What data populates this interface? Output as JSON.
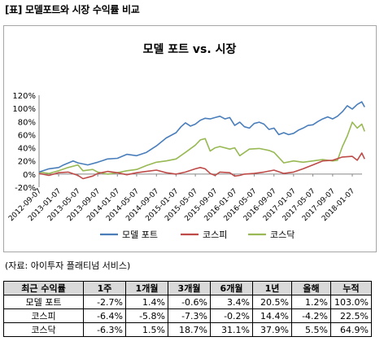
{
  "header": "[표] 모델포트와 시장 수익률 비교",
  "source": "(자료: 아이투자 플래티넘 서비스)",
  "chart_data": {
    "type": "line",
    "title": "모델 포트 vs. 시장",
    "xlabel": "",
    "ylabel": "",
    "ylim": [
      -20,
      120
    ],
    "yticks": [
      "-20%",
      "0%",
      "20%",
      "40%",
      "60%",
      "80%",
      "100%",
      "120%"
    ],
    "x_ticks": [
      "2012-09-07",
      "2013-01-07",
      "2013-05-07",
      "2013-09-07",
      "2014-01-07",
      "2014-05-07",
      "2014-09-07",
      "2015-01-07",
      "2015-05-07",
      "2015-09-07",
      "2016-01-07",
      "2016-05-07",
      "2016-09-07",
      "2017-01-07",
      "2017-05-07",
      "2017-09-07",
      "2018-01-07"
    ],
    "legend_position": "bottom",
    "grid": false,
    "series": [
      {
        "name": "모델 포트",
        "color": "#4a7ebb",
        "points": [
          [
            "2012-09-07",
            3
          ],
          [
            "2012-11-07",
            8
          ],
          [
            "2013-01-07",
            10
          ],
          [
            "2013-02-07",
            14
          ],
          [
            "2013-04-07",
            20
          ],
          [
            "2013-05-07",
            17
          ],
          [
            "2013-07-07",
            14
          ],
          [
            "2013-09-07",
            18
          ],
          [
            "2013-11-07",
            23
          ],
          [
            "2014-01-07",
            24
          ],
          [
            "2014-03-07",
            30
          ],
          [
            "2014-05-07",
            28
          ],
          [
            "2014-07-07",
            33
          ],
          [
            "2014-09-07",
            43
          ],
          [
            "2014-11-07",
            55
          ],
          [
            "2015-01-07",
            63
          ],
          [
            "2015-02-07",
            72
          ],
          [
            "2015-03-07",
            78
          ],
          [
            "2015-04-07",
            73
          ],
          [
            "2015-05-07",
            76
          ],
          [
            "2015-06-07",
            82
          ],
          [
            "2015-07-07",
            85
          ],
          [
            "2015-08-07",
            84
          ],
          [
            "2015-09-07",
            86
          ],
          [
            "2015-10-07",
            88
          ],
          [
            "2015-11-07",
            84
          ],
          [
            "2015-12-07",
            86
          ],
          [
            "2016-01-07",
            74
          ],
          [
            "2016-02-07",
            79
          ],
          [
            "2016-03-07",
            72
          ],
          [
            "2016-04-07",
            70
          ],
          [
            "2016-05-07",
            77
          ],
          [
            "2016-06-07",
            79
          ],
          [
            "2016-07-07",
            76
          ],
          [
            "2016-08-07",
            68
          ],
          [
            "2016-09-07",
            70
          ],
          [
            "2016-10-07",
            60
          ],
          [
            "2016-11-07",
            63
          ],
          [
            "2016-12-07",
            60
          ],
          [
            "2017-01-07",
            62
          ],
          [
            "2017-02-07",
            67
          ],
          [
            "2017-03-07",
            70
          ],
          [
            "2017-04-07",
            74
          ],
          [
            "2017-05-07",
            75
          ],
          [
            "2017-06-07",
            80
          ],
          [
            "2017-07-07",
            84
          ],
          [
            "2017-08-07",
            87
          ],
          [
            "2017-09-07",
            84
          ],
          [
            "2017-10-07",
            88
          ],
          [
            "2017-11-07",
            95
          ],
          [
            "2017-12-07",
            104
          ],
          [
            "2018-01-07",
            99
          ],
          [
            "2018-02-07",
            106
          ],
          [
            "2018-03-07",
            110
          ],
          [
            "2018-03-25",
            102
          ]
        ]
      },
      {
        "name": "코스피",
        "color": "#be4b48",
        "points": [
          [
            "2012-09-07",
            1
          ],
          [
            "2012-11-07",
            -2
          ],
          [
            "2013-01-07",
            2
          ],
          [
            "2013-03-07",
            3
          ],
          [
            "2013-05-07",
            -2
          ],
          [
            "2013-06-07",
            -7
          ],
          [
            "2013-08-07",
            -3
          ],
          [
            "2013-09-07",
            1
          ],
          [
            "2013-11-07",
            4
          ],
          [
            "2014-01-07",
            2
          ],
          [
            "2014-03-07",
            -1
          ],
          [
            "2014-05-07",
            2
          ],
          [
            "2014-07-07",
            4
          ],
          [
            "2014-09-07",
            6
          ],
          [
            "2014-11-07",
            2
          ],
          [
            "2015-01-07",
            0
          ],
          [
            "2015-03-07",
            3
          ],
          [
            "2015-05-07",
            8
          ],
          [
            "2015-06-07",
            10
          ],
          [
            "2015-07-07",
            8
          ],
          [
            "2015-08-07",
            1
          ],
          [
            "2015-09-07",
            -2
          ],
          [
            "2015-10-07",
            3
          ],
          [
            "2015-12-07",
            2
          ],
          [
            "2016-01-07",
            -3
          ],
          [
            "2016-02-07",
            -2
          ],
          [
            "2016-03-07",
            0
          ],
          [
            "2016-05-07",
            1
          ],
          [
            "2016-07-07",
            3
          ],
          [
            "2016-09-07",
            6
          ],
          [
            "2016-11-07",
            1
          ],
          [
            "2017-01-07",
            3
          ],
          [
            "2017-03-07",
            8
          ],
          [
            "2017-05-07",
            14
          ],
          [
            "2017-07-07",
            20
          ],
          [
            "2017-09-07",
            21
          ],
          [
            "2017-11-07",
            26
          ],
          [
            "2018-01-07",
            27
          ],
          [
            "2018-02-07",
            21
          ],
          [
            "2018-03-07",
            32
          ],
          [
            "2018-03-25",
            23
          ]
        ]
      },
      {
        "name": "코스닥",
        "color": "#98b954",
        "points": [
          [
            "2012-09-07",
            3
          ],
          [
            "2012-11-07",
            1
          ],
          [
            "2013-01-07",
            5
          ],
          [
            "2013-03-07",
            10
          ],
          [
            "2013-05-07",
            14
          ],
          [
            "2013-06-07",
            5
          ],
          [
            "2013-08-07",
            7
          ],
          [
            "2013-09-07",
            3
          ],
          [
            "2013-11-07",
            0
          ],
          [
            "2014-01-07",
            2
          ],
          [
            "2014-03-07",
            5
          ],
          [
            "2014-05-07",
            7
          ],
          [
            "2014-07-07",
            13
          ],
          [
            "2014-09-07",
            18
          ],
          [
            "2014-11-07",
            20
          ],
          [
            "2015-01-07",
            23
          ],
          [
            "2015-03-07",
            33
          ],
          [
            "2015-05-07",
            44
          ],
          [
            "2015-06-07",
            52
          ],
          [
            "2015-07-07",
            54
          ],
          [
            "2015-08-07",
            35
          ],
          [
            "2015-09-07",
            40
          ],
          [
            "2015-10-07",
            42
          ],
          [
            "2015-12-07",
            38
          ],
          [
            "2016-01-07",
            40
          ],
          [
            "2016-02-07",
            28
          ],
          [
            "2016-04-07",
            38
          ],
          [
            "2016-06-07",
            39
          ],
          [
            "2016-08-07",
            36
          ],
          [
            "2016-09-07",
            33
          ],
          [
            "2016-11-07",
            17
          ],
          [
            "2017-01-07",
            20
          ],
          [
            "2017-03-07",
            18
          ],
          [
            "2017-05-07",
            20
          ],
          [
            "2017-07-07",
            22
          ],
          [
            "2017-09-07",
            20
          ],
          [
            "2017-10-07",
            21
          ],
          [
            "2017-11-07",
            42
          ],
          [
            "2017-12-07",
            58
          ],
          [
            "2018-01-07",
            79
          ],
          [
            "2018-02-07",
            70
          ],
          [
            "2018-03-07",
            76
          ],
          [
            "2018-03-25",
            65
          ]
        ]
      }
    ]
  },
  "table": {
    "headers": [
      "최근 수익률",
      "1주",
      "1개월",
      "3개월",
      "6개월",
      "1년",
      "올해",
      "누적"
    ],
    "rows": [
      [
        "모델 포트",
        "-2.7%",
        "1.4%",
        "-0.6%",
        "3.4%",
        "20.5%",
        "1.2%",
        "103.0%"
      ],
      [
        "코스피",
        "-6.4%",
        "-5.8%",
        "-7.3%",
        "-0.2%",
        "14.4%",
        "-4.2%",
        "22.5%"
      ],
      [
        "코스닥",
        "-6.3%",
        "1.5%",
        "18.7%",
        "31.1%",
        "37.9%",
        "5.5%",
        "64.9%"
      ]
    ]
  }
}
